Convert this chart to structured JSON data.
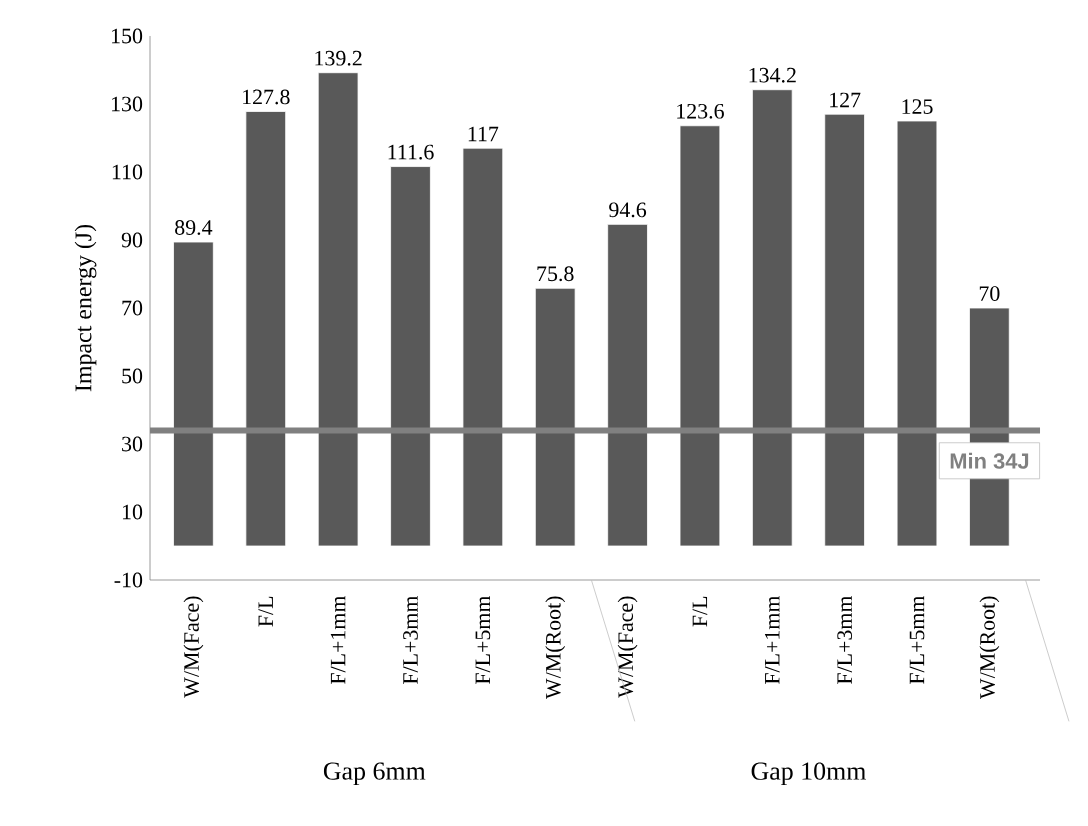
{
  "chart_data": {
    "type": "bar",
    "ylabel": "Impact energy (J)",
    "categories": [
      "W/M(Face)",
      "F/L",
      "F/L+1mm",
      "F/L+3mm",
      "F/L+5mm",
      "W/M(Root)",
      "W/M(Face)",
      "F/L",
      "F/L+1mm",
      "F/L+3mm",
      "F/L+5mm",
      "W/M(Root)"
    ],
    "values": [
      89.4,
      127.8,
      139.2,
      111.6,
      117,
      75.8,
      94.6,
      123.6,
      134.2,
      127,
      125,
      70
    ],
    "color": "#595959",
    "ylim": [
      -10,
      150
    ],
    "yticks": [
      -10,
      10,
      30,
      50,
      70,
      90,
      110,
      130,
      150
    ],
    "data_labels": true,
    "ref_lines": [
      {
        "axis": "y",
        "value": 34,
        "label": "Min 34J",
        "color": "#808080"
      }
    ],
    "annotations": [
      "Gap 6mm",
      "Gap 10mm"
    ]
  }
}
